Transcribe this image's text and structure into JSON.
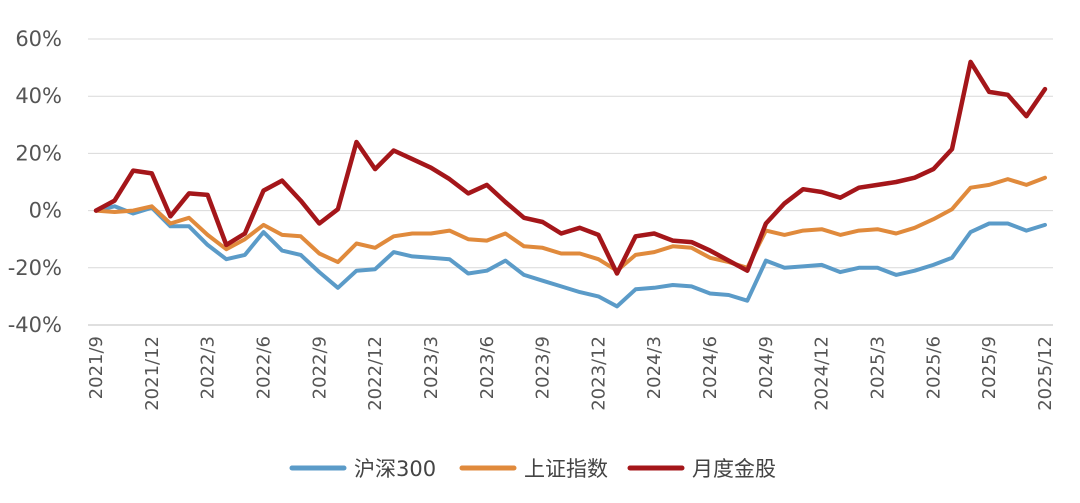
{
  "chart_data": {
    "type": "line",
    "title": "",
    "xlabel": "",
    "ylabel": "",
    "ylim": [
      -40,
      60
    ],
    "yticks": [
      "60%",
      "40%",
      "20%",
      "0%",
      "-20%",
      "-40%"
    ],
    "ytick_values": [
      60,
      40,
      20,
      0,
      -20,
      -40
    ],
    "x_tick_labels": [
      "2021/9",
      "2021/12",
      "2022/3",
      "2022/6",
      "2022/9",
      "2022/12",
      "2023/3",
      "2023/6",
      "2023/9",
      "2023/12",
      "2024/3",
      "2024/6",
      "2024/9",
      "2024/12",
      "2025/3",
      "2025/6",
      "2025/9",
      "2025/12"
    ],
    "grid": true,
    "legend_position": "bottom",
    "series": [
      {
        "name": "沪深300",
        "color": "#5b9bc8",
        "values": [
          0,
          1.5,
          -1,
          1,
          -5.5,
          -5.5,
          -12,
          -17,
          -15.5,
          -7.5,
          -14,
          -15.5,
          -21.5,
          -27,
          -21,
          -20.5,
          -14.5,
          -16,
          -16.5,
          -17,
          -22,
          -21,
          -17.5,
          -22.5,
          -24.5,
          -26.5,
          -28.5,
          -30,
          -33.5,
          -27.5,
          -27,
          -26,
          -26.5,
          -29,
          -29.5,
          -31.5,
          -17.5,
          -20,
          -19.5,
          -19,
          -21.5,
          -20,
          -20,
          -22.5,
          -21,
          -19,
          -16.5,
          -7.5,
          -4.5,
          -4.5,
          -7,
          -5
        ]
      },
      {
        "name": "上证指数",
        "color": "#e08a3c",
        "values": [
          0,
          -0.5,
          0,
          1.5,
          -4.5,
          -2.5,
          -8.5,
          -13.5,
          -10,
          -5,
          -8.5,
          -9,
          -15,
          -18,
          -11.5,
          -13,
          -9,
          -8,
          -8,
          -7,
          -10,
          -10.5,
          -8,
          -12.5,
          -13,
          -15,
          -15,
          -17,
          -21,
          -15.5,
          -14.5,
          -12.5,
          -13,
          -16.5,
          -18,
          -20,
          -7,
          -8.5,
          -7,
          -6.5,
          -8.5,
          -7,
          -6.5,
          -8,
          -6,
          -3,
          0.5,
          8,
          9,
          11,
          9,
          11.5
        ]
      },
      {
        "name": "月度金股",
        "color": "#a4161a",
        "values": [
          0,
          3.5,
          14,
          13,
          -2,
          6,
          5.5,
          -12,
          -8,
          7,
          10.5,
          3.5,
          -4.5,
          0.5,
          24,
          14.5,
          21,
          18,
          15,
          11,
          6,
          9,
          3,
          -2.5,
          -4,
          -8,
          -6,
          -8.5,
          -22,
          -9,
          -8,
          -10.5,
          -11,
          -14,
          -17.5,
          -21,
          -4.5,
          2.5,
          7.5,
          6.5,
          4.5,
          8,
          9,
          10,
          11.5,
          14.5,
          21.5,
          52,
          41.5,
          40.5,
          33,
          42.5
        ]
      }
    ]
  }
}
